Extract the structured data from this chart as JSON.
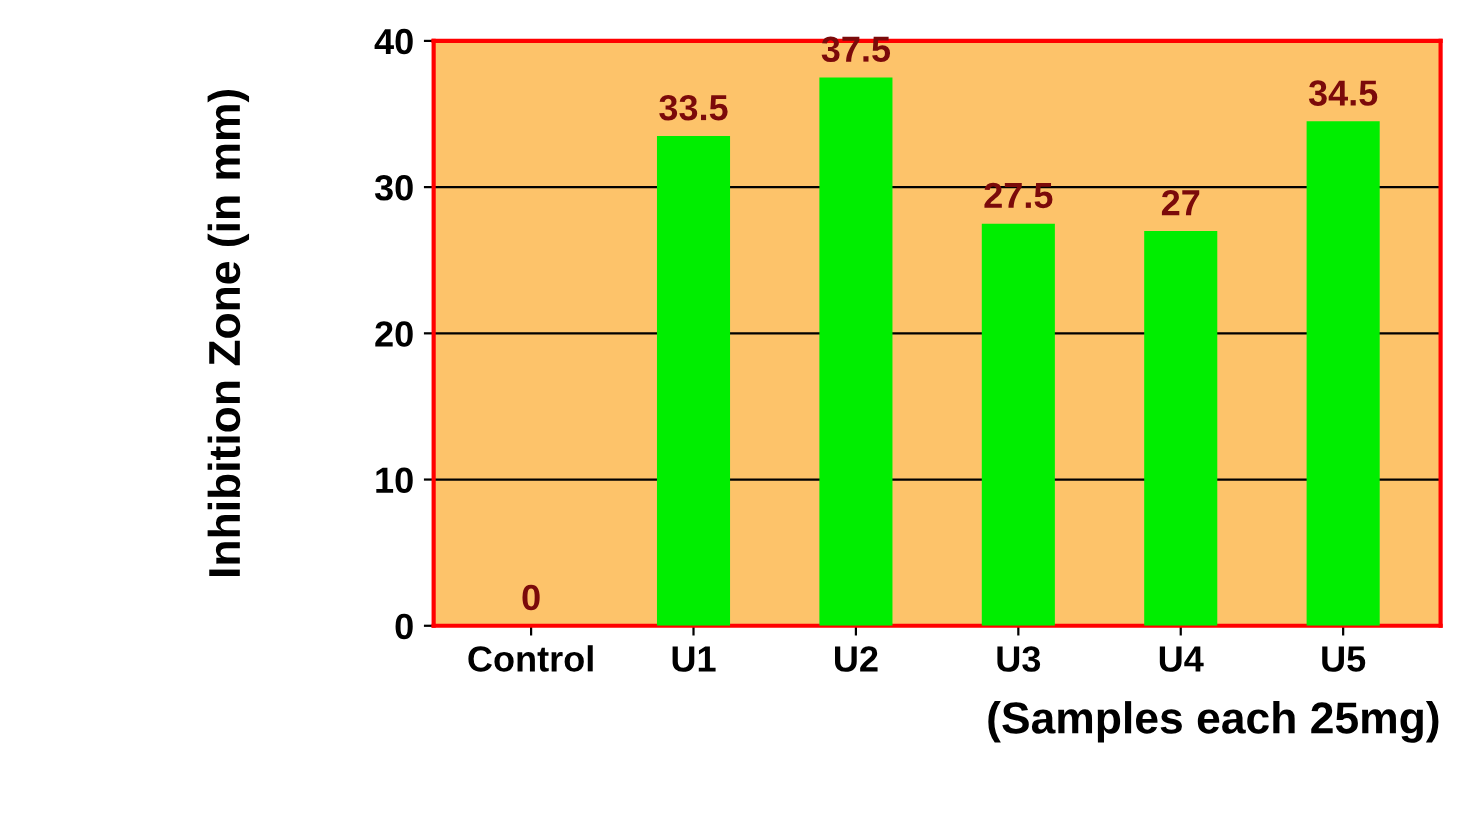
{
  "chart_data": {
    "type": "bar",
    "xlabel": "(Samples each 25mg)",
    "ylabel": "Inhibition Zone (in mm)",
    "categories": [
      "Control",
      "U1",
      "U2",
      "U3",
      "U4",
      "U5"
    ],
    "values": [
      0,
      33.5,
      37.5,
      27.5,
      27,
      34.5
    ],
    "color": "#00ee00",
    "ylim": [
      0,
      40
    ],
    "yticks": [
      0,
      10,
      20,
      30,
      40
    ],
    "grid": "y",
    "data_labels": true
  }
}
